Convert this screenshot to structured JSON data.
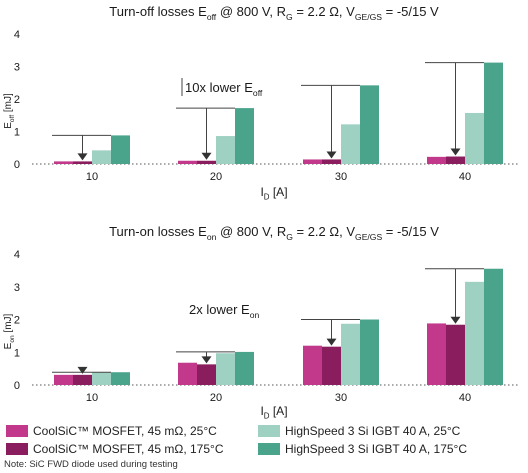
{
  "chart_data": [
    {
      "type": "bar",
      "title_parts": [
        "Turn-off losses E",
        "off",
        " @ 800 V, R",
        "G",
        " = 2.2 Ω, V",
        "GE/GS",
        " = -5/15 V"
      ],
      "ylabel_parts": [
        "E",
        "off",
        " [mJ]"
      ],
      "xlabel_parts": [
        "I",
        "D",
        " [A]"
      ],
      "annotation_parts": [
        "10x lower E",
        "off"
      ],
      "categories": [
        "10",
        "20",
        "30",
        "40"
      ],
      "ylim": [
        0,
        4
      ],
      "yticks": [
        "0",
        "1",
        "2",
        "3",
        "4"
      ],
      "grid": "dotted baseline only",
      "series": [
        {
          "values": [
            0.08,
            0.1,
            0.14,
            0.22
          ]
        },
        {
          "values": [
            0.08,
            0.1,
            0.14,
            0.23
          ]
        },
        {
          "values": [
            0.42,
            0.86,
            1.22,
            1.57
          ]
        },
        {
          "values": [
            0.88,
            1.72,
            2.42,
            3.12
          ]
        }
      ]
    },
    {
      "type": "bar",
      "title_parts": [
        "Turn-on losses E",
        "on",
        " @ 800 V, R",
        "G",
        " = 2.2 Ω, V",
        "GE/GS",
        " = -5/15 V"
      ],
      "ylabel_parts": [
        "E",
        "on",
        " [mJ]"
      ],
      "xlabel_parts": [
        "I",
        "D",
        " [A]"
      ],
      "annotation_parts": [
        "2x lower E",
        "on"
      ],
      "categories": [
        "10",
        "20",
        "30",
        "40"
      ],
      "ylim": [
        0,
        4
      ],
      "yticks": [
        "0",
        "1",
        "2",
        "3",
        "4"
      ],
      "grid": "dotted baseline only",
      "series": [
        {
          "values": [
            0.31,
            0.68,
            1.2,
            1.88
          ]
        },
        {
          "values": [
            0.31,
            0.63,
            1.17,
            1.84
          ]
        },
        {
          "values": [
            0.38,
            0.97,
            1.87,
            3.15
          ]
        },
        {
          "values": [
            0.39,
            1.01,
            2.0,
            3.55
          ]
        }
      ]
    }
  ],
  "legend": [
    {
      "label": "CoolSiC™ MOSFET, 45 mΩ, 25°C",
      "color": "#c2398c"
    },
    {
      "label": "HighSpeed 3 Si IGBT 40 A, 25°C",
      "color": "#9fd1c3"
    },
    {
      "label": "CoolSiC™ MOSFET, 45 mΩ, 175°C",
      "color": "#8a1d5d"
    },
    {
      "label": "HighSpeed 3 Si IGBT 40 A, 175°C",
      "color": "#4aa48c"
    }
  ],
  "series_colors": [
    "#c2398c",
    "#8a1d5d",
    "#9fd1c3",
    "#4aa48c"
  ],
  "note": "Note: SiC FWD diode used during testing"
}
